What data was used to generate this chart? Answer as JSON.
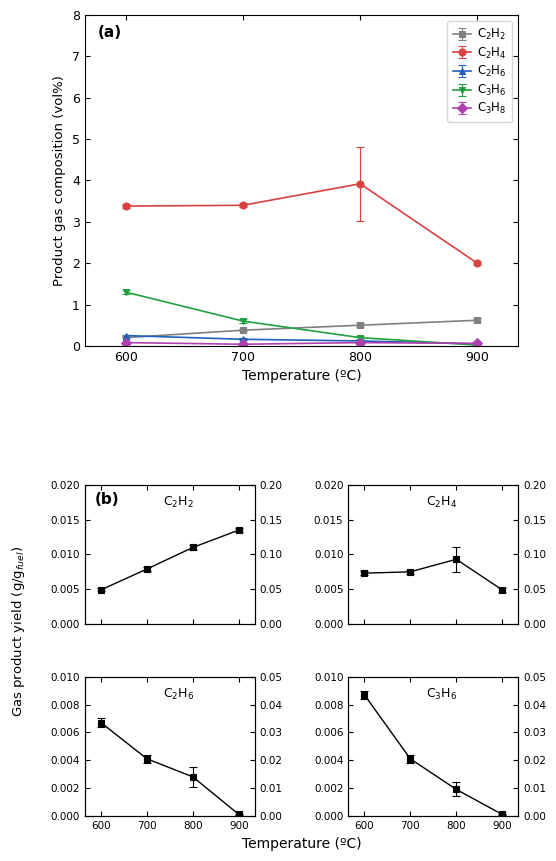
{
  "temperatures": [
    600,
    700,
    800,
    900
  ],
  "panel_a": {
    "C2H2": {
      "values": [
        0.2,
        0.38,
        0.5,
        0.62
      ],
      "yerr": [
        0.02,
        0.02,
        0.05,
        0.05
      ],
      "color": "#808080",
      "marker": "s",
      "label": "C$_2$H$_2$"
    },
    "C2H4": {
      "values": [
        3.38,
        3.4,
        3.92,
        2.0
      ],
      "yerr": [
        0.05,
        0.05,
        0.9,
        0.05
      ],
      "color": "#d94040",
      "marker": "o",
      "label": "C$_2$H$_4$"
    },
    "C2H6": {
      "values": [
        0.25,
        0.16,
        0.12,
        0.05
      ],
      "yerr": [
        0.02,
        0.02,
        0.02,
        0.01
      ],
      "color": "#2060c0",
      "marker": "^",
      "label": "C$_2$H$_6$"
    },
    "C3H6": {
      "values": [
        1.3,
        0.6,
        0.2,
        0.02
      ],
      "yerr": [
        0.05,
        0.05,
        0.03,
        0.01
      ],
      "color": "#20a040",
      "marker": "v",
      "label": "C$_3$H$_6$"
    },
    "C3H8": {
      "values": [
        0.08,
        0.04,
        0.08,
        0.06
      ],
      "yerr": [
        0.01,
        0.01,
        0.01,
        0.01
      ],
      "color": "#b040b0",
      "marker": "D",
      "label": "C$_3$H$_8$"
    },
    "ylabel": "Product gas composition (vol%)",
    "ylim": [
      0,
      8
    ],
    "yticks": [
      0,
      1,
      2,
      3,
      4,
      5,
      6,
      7,
      8
    ]
  },
  "panel_b": {
    "C2H2": {
      "values": [
        0.0049,
        0.0079,
        0.011,
        0.0135
      ],
      "yerr": [
        0.0002,
        0.0003,
        0.0003,
        0.0003
      ],
      "ylim": [
        0.0,
        0.02
      ],
      "ylim_right": [
        0.0,
        0.2
      ],
      "yticks_left": [
        0.0,
        0.005,
        0.01,
        0.015,
        0.02
      ],
      "yticks_right": [
        0.0,
        0.05,
        0.1,
        0.15,
        0.2
      ],
      "label": "C$_2$H$_2$"
    },
    "C2H4": {
      "values": [
        0.0073,
        0.0075,
        0.0093,
        0.0049
      ],
      "yerr": [
        0.0003,
        0.0003,
        0.0018,
        0.0003
      ],
      "ylim": [
        0.0,
        0.02
      ],
      "ylim_right": [
        0.0,
        0.2
      ],
      "yticks_left": [
        0.0,
        0.005,
        0.01,
        0.015,
        0.02
      ],
      "yticks_right": [
        0.0,
        0.05,
        0.1,
        0.15,
        0.2
      ],
      "label": "C$_2$H$_4$"
    },
    "C2H6": {
      "values": [
        0.0067,
        0.0041,
        0.0028,
        0.0001
      ],
      "yerr": [
        0.0003,
        0.0003,
        0.0007,
        5e-05
      ],
      "ylim": [
        0.0,
        0.01
      ],
      "ylim_right": [
        0.0,
        0.05
      ],
      "yticks_left": [
        0.0,
        0.002,
        0.004,
        0.006,
        0.008,
        0.01
      ],
      "yticks_right": [
        0.0,
        0.01,
        0.02,
        0.03,
        0.04,
        0.05
      ],
      "label": "C$_2$H$_6$"
    },
    "C3H6": {
      "values": [
        0.0087,
        0.0041,
        0.0019,
        0.0001
      ],
      "yerr": [
        0.0003,
        0.0003,
        0.0005,
        5e-05
      ],
      "ylim": [
        0.0,
        0.01
      ],
      "ylim_right": [
        0.0,
        0.05
      ],
      "yticks_left": [
        0.0,
        0.002,
        0.004,
        0.006,
        0.008,
        0.01
      ],
      "yticks_right": [
        0.0,
        0.01,
        0.02,
        0.03,
        0.04,
        0.05
      ],
      "label": "C$_3$H$_6$"
    },
    "ylabel": "Gas product yield (g/g$_{fuel}$)",
    "xlabel": "Temperature (ºC)"
  },
  "xlabel": "Temperature (ºC)"
}
